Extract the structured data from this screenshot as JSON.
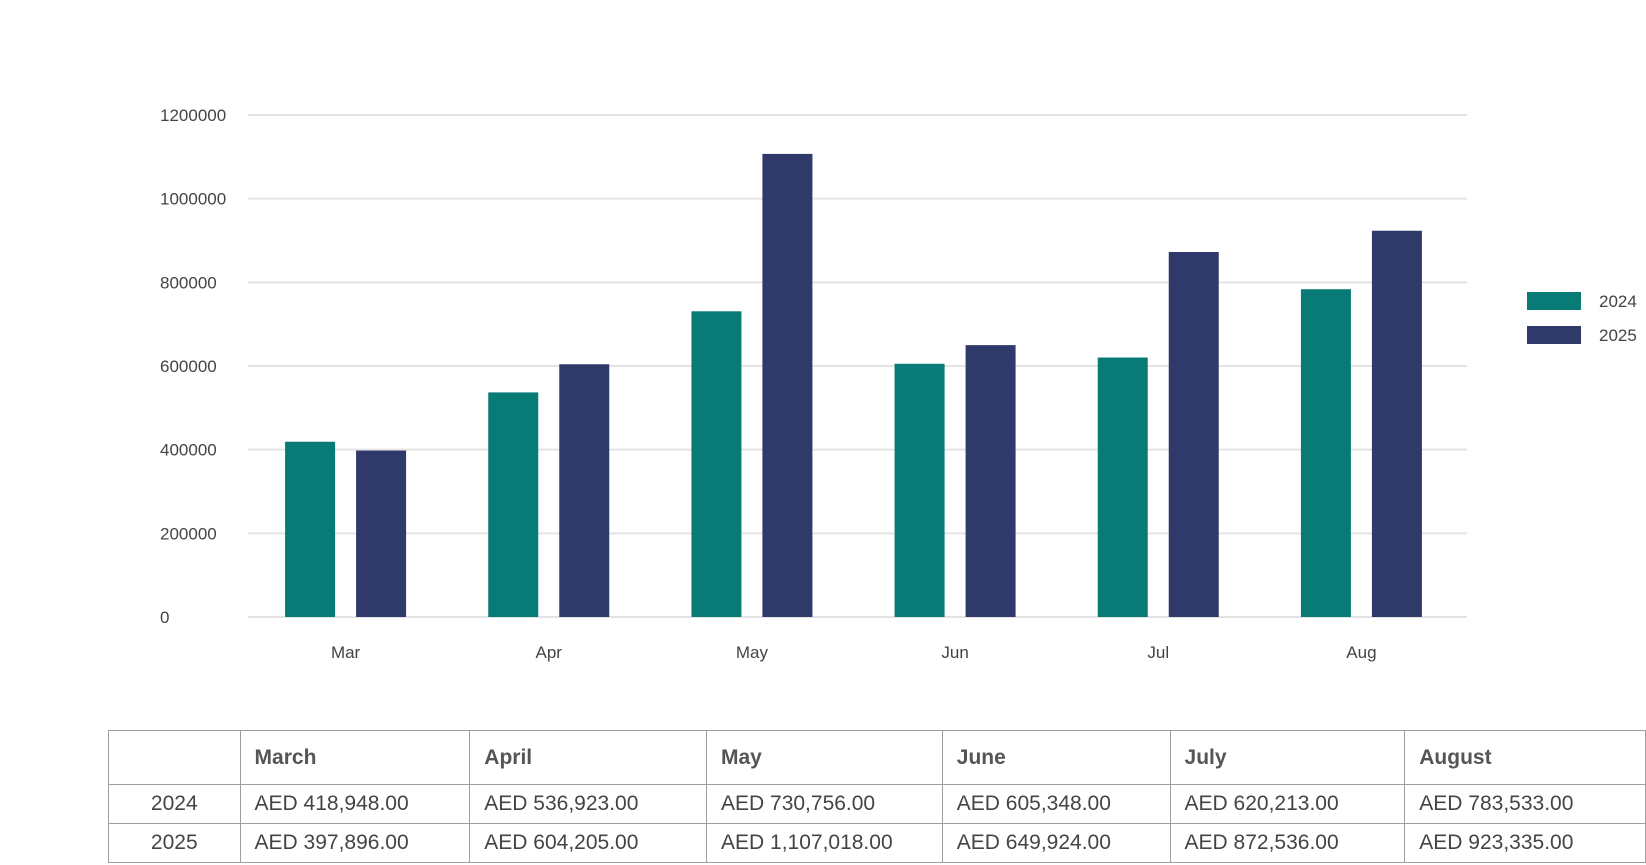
{
  "colors": {
    "s2024": "#087b77",
    "s2025": "#303a6a",
    "grid": "#e3e3e3"
  },
  "chart_data": {
    "type": "bar",
    "categories": [
      "Mar",
      "Apr",
      "May",
      "Jun",
      "Jul",
      "Aug"
    ],
    "series": [
      {
        "name": "2024",
        "values": [
          418948,
          536923,
          730756,
          605348,
          620213,
          783533
        ]
      },
      {
        "name": "2025",
        "values": [
          397896,
          604205,
          1107018,
          649924,
          872536,
          923335
        ]
      }
    ],
    "yticks": [
      "1200000",
      "1000000",
      "800000",
      "600000",
      "400000",
      "200000",
      "0"
    ],
    "ylim": [
      0,
      1200000
    ],
    "grid": true,
    "legend": "right"
  },
  "table": {
    "headers": [
      "",
      "March",
      "April",
      "May",
      "June",
      "July",
      "August"
    ],
    "rows": [
      {
        "year": "2024",
        "cells": [
          "AED 418,948.00",
          "AED 536,923.00",
          "AED 730,756.00",
          "AED 605,348.00",
          "AED 620,213.00",
          "AED 783,533.00"
        ]
      },
      {
        "year": "2025",
        "cells": [
          "AED 397,896.00",
          "AED 604,205.00",
          "AED 1,107,018.00",
          "AED 649,924.00",
          "AED 872,536.00",
          "AED 923,335.00"
        ]
      }
    ]
  }
}
